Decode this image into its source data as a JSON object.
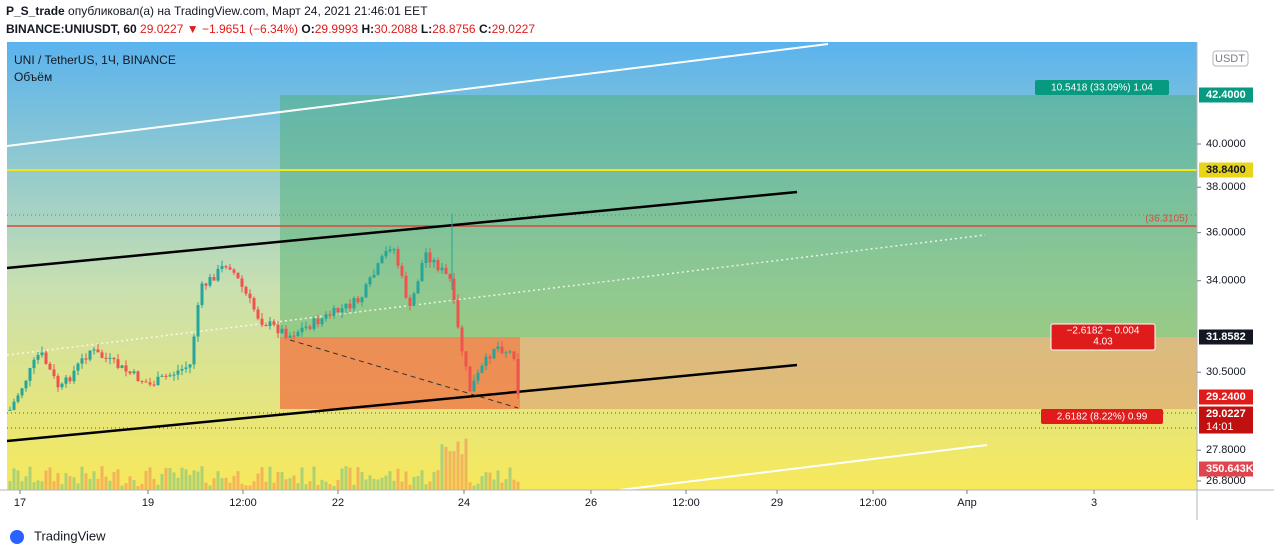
{
  "header": {
    "author": "P_S_trade",
    "published": "опубликовал(а) на TradingView.com, Март 24, 2021 21:46:01 EET",
    "symbol": "BINANCE:UNIUSDT, 60",
    "price": "29.0227 ▼",
    "change": "−1.9651 (−6.34%)",
    "ohlc": [
      {
        "label": "O:",
        "value": "29.9993"
      },
      {
        "label": "H:",
        "value": "30.2088"
      },
      {
        "label": "L:",
        "value": "28.8756"
      },
      {
        "label": "C:",
        "value": "29.0227"
      }
    ]
  },
  "legend": {
    "title": "UNI / TetherUS, 1Ч, BINANCE",
    "volume": "Объём"
  },
  "currency": "USDT",
  "price_axis": [
    "40.0000",
    "38.0000",
    "36.0000",
    "34.0000",
    "30.5000",
    "27.8000",
    "26.8000"
  ],
  "price_tags": [
    {
      "text": "42.4000",
      "color": "#089981"
    },
    {
      "text": "38.8400",
      "color": "#e8d418"
    },
    {
      "text": "31.8582",
      "color": "#131722"
    },
    {
      "text": "29.2400",
      "color": "#e01b1b"
    },
    {
      "text": "29.0227",
      "sub": "14:01",
      "color": "#c01010"
    },
    {
      "text": "350.643K",
      "color": "#e0454f"
    }
  ],
  "time_axis": [
    "17",
    "19",
    "12:00",
    "22",
    "24",
    "26",
    "12:00",
    "29",
    "12:00",
    "Апр",
    "3"
  ],
  "annotations": {
    "target": "10.5418 (33.09%) 1.04",
    "risk_top": "−2.6182 ~ 0.004",
    "risk_bottom": "4.03",
    "level": "(36.3105)",
    "stop": "2.6182 (8.22%) 0.99"
  },
  "footer": "TradingView"
}
